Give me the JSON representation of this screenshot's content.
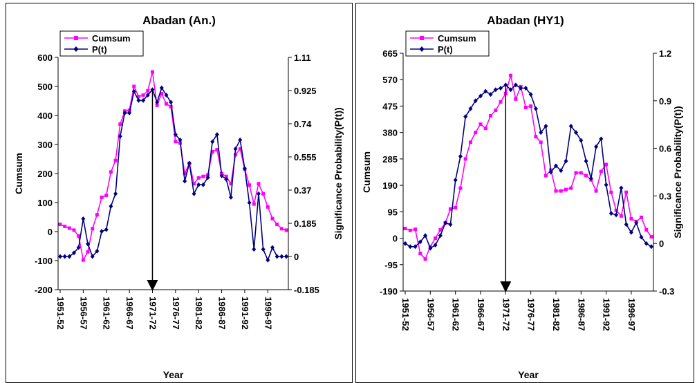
{
  "chart_data": [
    {
      "type": "line",
      "title": "Abadan (An.)",
      "xlabel": "Year",
      "ylabel": "Cumsum",
      "y2label": "Significance Probability(P(t))",
      "ylim": [
        -200,
        600
      ],
      "y_ticks": [
        "600",
        "500",
        "400",
        "300",
        "200",
        "100",
        "0",
        "-100",
        "-200"
      ],
      "y2lim": [
        -0.185,
        1.11
      ],
      "y2_ticks": [
        "1.11",
        "0.925",
        "0.74",
        "0.555",
        "0.37",
        "0.185",
        "0",
        "-0.185"
      ],
      "x_tick_labels": [
        "1951-52",
        "1956-57",
        "1961-62",
        "1966-67",
        "1971-72",
        "1976-77",
        "1981-82",
        "1986-87",
        "1991-92",
        "1996-97"
      ],
      "change_point": "1971-72",
      "legend_position": "top-left",
      "series": [
        {
          "name": "Cumsum",
          "color": "#ff00ff",
          "axis": "left",
          "values": [
            25,
            18,
            12,
            5,
            -15,
            -98,
            -70,
            10,
            58,
            118,
            125,
            205,
            245,
            370,
            415,
            418,
            500,
            465,
            470,
            485,
            550,
            435,
            475,
            440,
            430,
            310,
            305,
            200,
            235,
            165,
            185,
            190,
            195,
            275,
            282,
            200,
            190,
            165,
            265,
            285,
            215,
            160,
            95,
            165,
            130,
            85,
            45,
            25,
            10,
            5
          ]
        },
        {
          "name": "P(t)",
          "color": "#000080",
          "axis": "right",
          "values": [
            0.0,
            0.0,
            0.0,
            0.02,
            0.05,
            0.21,
            0.07,
            0.0,
            0.03,
            0.14,
            0.15,
            0.28,
            0.35,
            0.67,
            0.8,
            0.8,
            0.92,
            0.87,
            0.87,
            0.9,
            0.93,
            0.86,
            0.94,
            0.9,
            0.86,
            0.68,
            0.65,
            0.42,
            0.52,
            0.35,
            0.4,
            0.4,
            0.44,
            0.64,
            0.68,
            0.45,
            0.43,
            0.33,
            0.6,
            0.65,
            0.49,
            0.3,
            0.04,
            0.35,
            0.04,
            -0.02,
            0.05,
            0.0,
            0.0,
            0.0
          ]
        }
      ]
    },
    {
      "type": "line",
      "title": "Abadan (HY1)",
      "xlabel": "Year",
      "ylabel": "Cumsum",
      "y2label": "Significance Probability(P(t))",
      "ylim": [
        -190,
        665
      ],
      "y_ticks": [
        "665",
        "570",
        "475",
        "380",
        "285",
        "190",
        "95",
        "0",
        "-95",
        "-190"
      ],
      "y2lim": [
        -0.3,
        1.2
      ],
      "y2_ticks": [
        "1.2",
        "0.9",
        "0.6",
        "0.3",
        "0",
        "-0.3"
      ],
      "x_tick_labels": [
        "1951-52",
        "1956-57",
        "1961-62",
        "1966-67",
        "1971-72",
        "1976-77",
        "1981-82",
        "1986-87",
        "1991-92",
        "1996-97"
      ],
      "change_point": "1971-72",
      "legend_position": "top-left",
      "series": [
        {
          "name": "Cumsum",
          "color": "#ff00ff",
          "axis": "left",
          "values": [
            35,
            28,
            32,
            -55,
            -75,
            -30,
            0,
            30,
            55,
            105,
            110,
            180,
            285,
            345,
            380,
            410,
            395,
            440,
            460,
            490,
            520,
            585,
            500,
            545,
            470,
            475,
            365,
            345,
            225,
            245,
            170,
            170,
            175,
            180,
            235,
            235,
            225,
            210,
            170,
            240,
            265,
            165,
            100,
            80,
            165,
            70,
            60,
            75,
            30,
            5
          ]
        },
        {
          "name": "P(t)",
          "color": "#000080",
          "axis": "right",
          "values": [
            0.0,
            -0.02,
            -0.02,
            0.01,
            0.05,
            -0.03,
            -0.01,
            0.05,
            0.13,
            0.12,
            0.4,
            0.55,
            0.8,
            0.85,
            0.9,
            0.93,
            0.96,
            0.94,
            0.97,
            0.98,
            1.0,
            0.97,
            1.0,
            0.98,
            0.98,
            0.94,
            0.85,
            0.7,
            0.74,
            0.45,
            0.49,
            0.46,
            0.52,
            0.74,
            0.7,
            0.65,
            0.52,
            0.41,
            0.61,
            0.66,
            0.37,
            0.19,
            0.18,
            0.35,
            0.12,
            0.07,
            0.13,
            0.04,
            0.0,
            -0.02
          ]
        }
      ]
    }
  ]
}
